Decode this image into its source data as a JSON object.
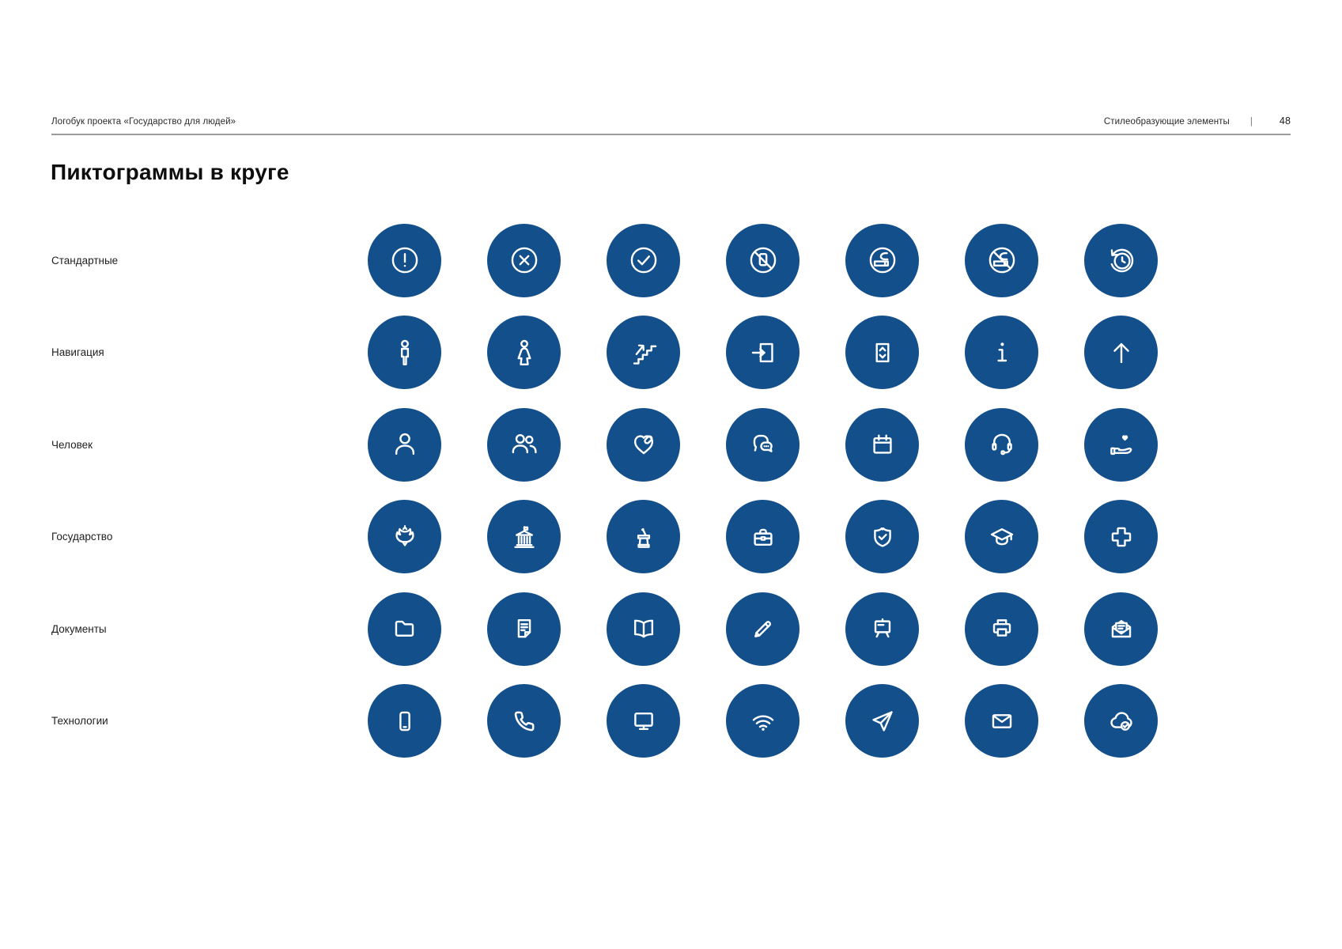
{
  "header": {
    "left": "Логобук проекта «Государство для людей»",
    "right": "Стилеобразующие элементы",
    "divider": "|",
    "page_number": "48"
  },
  "title": "Пиктограммы в круге",
  "colors": {
    "circle_blue": "#134F8B",
    "icon_stroke": "#FFFFFF",
    "divider_gray": "#9B9B9B",
    "text_dark": "#0E0E0E"
  },
  "rows": [
    {
      "label": "Стандартные",
      "icons": [
        "alert-circle-icon",
        "cross-circle-icon",
        "check-circle-icon",
        "no-phone-icon",
        "smoking-area-icon",
        "no-smoking-icon",
        "history-clock-icon"
      ]
    },
    {
      "label": "Навигация",
      "icons": [
        "man-icon",
        "woman-icon",
        "stairs-up-icon",
        "entrance-icon",
        "elevator-icon",
        "info-icon",
        "arrow-up-icon"
      ]
    },
    {
      "label": "Человек",
      "icons": [
        "user-icon",
        "users-icon",
        "heart-icon",
        "chat-icon",
        "calendar-icon",
        "headset-icon",
        "hand-heart-icon"
      ]
    },
    {
      "label": "Государство",
      "icons": [
        "eagle-icon",
        "government-building-icon",
        "tribune-icon",
        "briefcase-icon",
        "shield-check-icon",
        "graduation-cap-icon",
        "medical-cross-icon"
      ]
    },
    {
      "label": "Документы",
      "icons": [
        "folder-icon",
        "document-icon",
        "open-book-icon",
        "pencil-icon",
        "presentation-board-icon",
        "printer-icon",
        "mail-letter-icon"
      ]
    },
    {
      "label": "Технологии",
      "icons": [
        "smartphone-icon",
        "phone-icon",
        "monitor-icon",
        "wifi-icon",
        "send-icon",
        "envelope-icon",
        "cloud-check-icon"
      ]
    }
  ]
}
